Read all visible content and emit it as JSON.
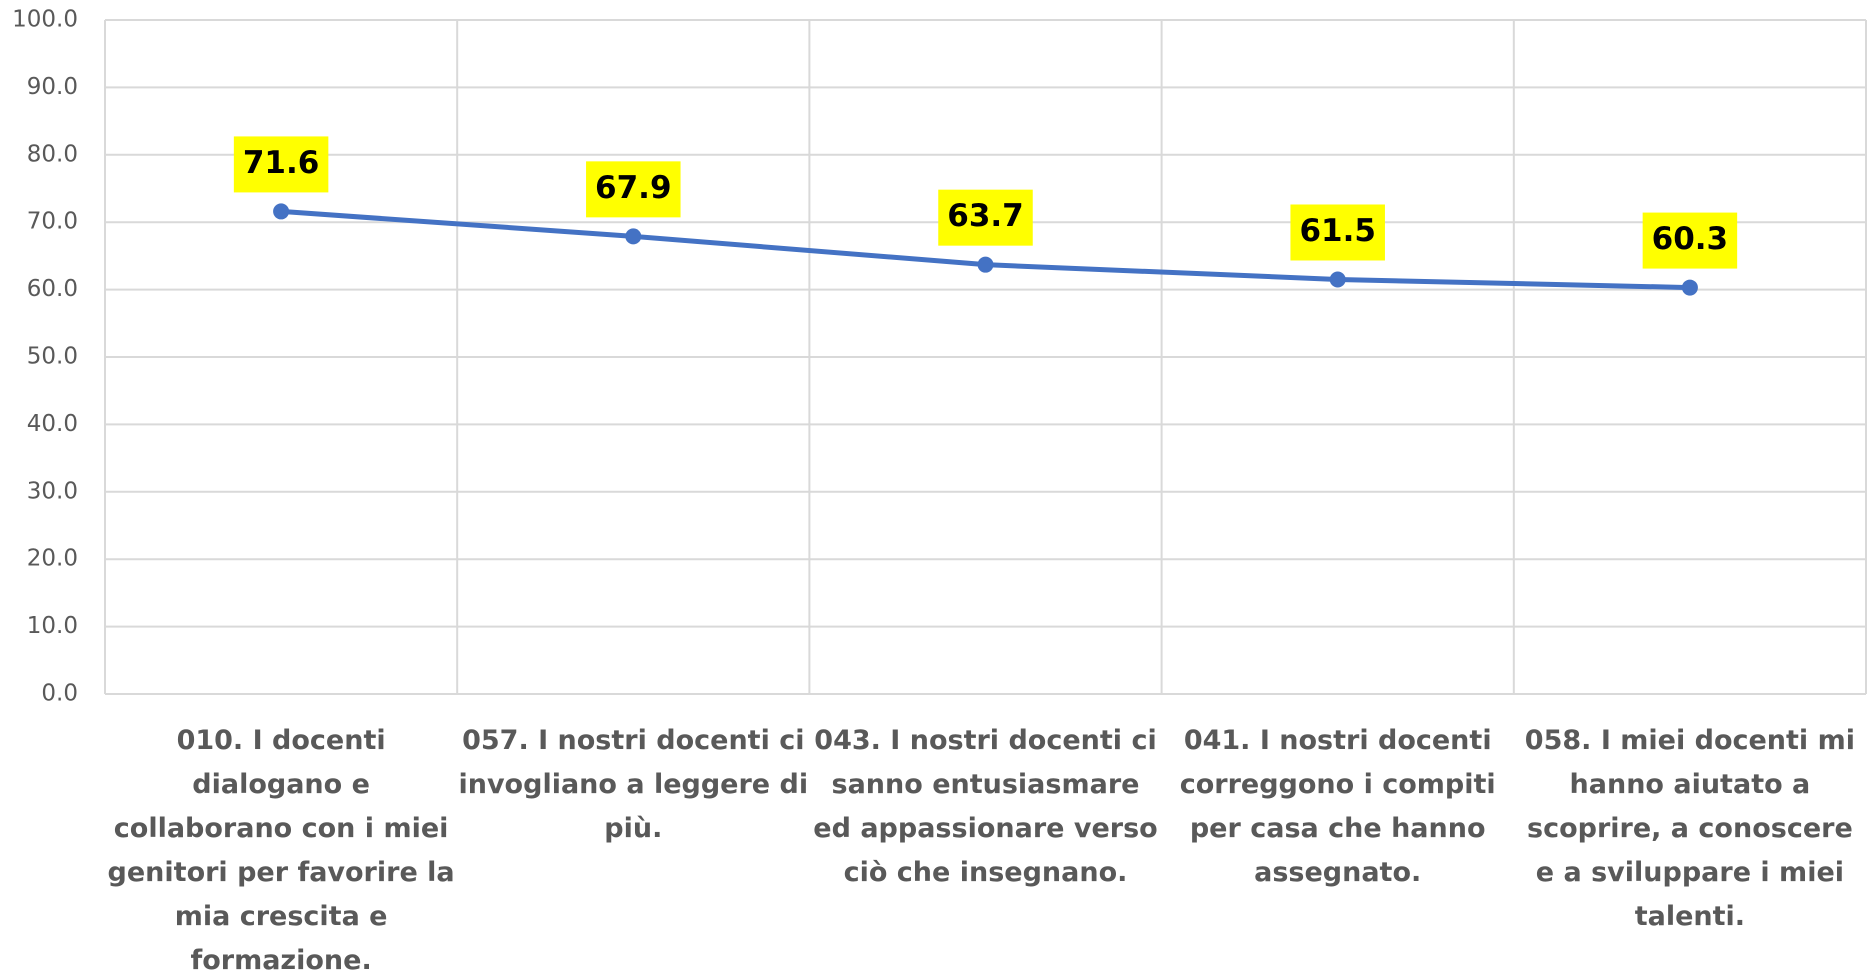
{
  "chart_data": {
    "type": "line",
    "categories": [
      "010. I docenti dialogano e collaborano con i miei genitori per favorire la mia crescita e formazione.",
      "057. I nostri docenti ci invogliano a leggere di più.",
      "043. I nostri docenti ci sanno entusiasmare ed appassionare verso ciò che insegnano.",
      "041. I nostri docenti correggono i compiti per casa che hanno assegnato.",
      "058. I miei docenti mi hanno aiutato a scoprire, a conoscere e a sviluppare i miei talenti."
    ],
    "series": [
      {
        "color": "#4472c4",
        "values": [
          71.6,
          67.9,
          63.7,
          61.5,
          60.3
        ]
      }
    ],
    "label_background": "#ffff00",
    "ylim": [
      0,
      100
    ],
    "yticks": [
      {
        "value": 0,
        "label": "0.0"
      },
      {
        "value": 10,
        "label": "10.0"
      },
      {
        "value": 20,
        "label": "20.0"
      },
      {
        "value": 30,
        "label": "30.0"
      },
      {
        "value": 40,
        "label": "40.0"
      },
      {
        "value": 50,
        "label": "50.0"
      },
      {
        "value": 60,
        "label": "60.0"
      },
      {
        "value": 70,
        "label": "70.0"
      },
      {
        "value": 80,
        "label": "80.0"
      },
      {
        "value": 90,
        "label": "90.0"
      },
      {
        "value": 100,
        "label": "100.0"
      }
    ],
    "grid": true
  }
}
